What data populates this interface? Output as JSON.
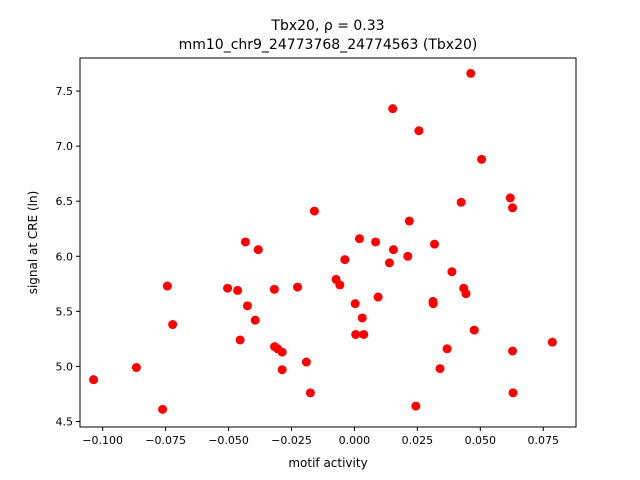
{
  "chart_data": {
    "type": "scatter",
    "title_line1": "Tbx20, ρ = 0.33",
    "title_line2": "mm10_chr9_24773768_24774563 (Tbx20)",
    "xlabel": "motif activity",
    "ylabel": "signal at CRE (ln)",
    "xlim": [
      -0.109,
      0.088
    ],
    "ylim": [
      4.45,
      7.8
    ],
    "xticks": [
      -0.1,
      -0.075,
      -0.05,
      -0.025,
      0.0,
      0.025,
      0.05,
      0.075
    ],
    "xtick_labels": [
      "−0.100",
      "−0.075",
      "−0.050",
      "−0.025",
      "0.000",
      "0.025",
      "0.050",
      "0.075"
    ],
    "yticks": [
      4.5,
      5.0,
      5.5,
      6.0,
      6.5,
      7.0,
      7.5
    ],
    "ytick_labels": [
      "4.5",
      "5.0",
      "5.5",
      "6.0",
      "6.5",
      "7.0",
      "7.5"
    ],
    "grid": false,
    "marker_color": "#ff0000",
    "points": [
      {
        "x": -0.1036,
        "y": 4.88
      },
      {
        "x": -0.0866,
        "y": 4.99
      },
      {
        "x": -0.0762,
        "y": 4.61
      },
      {
        "x": -0.0743,
        "y": 5.73
      },
      {
        "x": -0.0722,
        "y": 5.38
      },
      {
        "x": -0.0504,
        "y": 5.71
      },
      {
        "x": -0.0464,
        "y": 5.69
      },
      {
        "x": -0.0454,
        "y": 5.24
      },
      {
        "x": -0.0433,
        "y": 6.13
      },
      {
        "x": -0.0425,
        "y": 5.55
      },
      {
        "x": -0.0394,
        "y": 5.42
      },
      {
        "x": -0.0382,
        "y": 6.06
      },
      {
        "x": -0.0318,
        "y": 5.7
      },
      {
        "x": -0.0317,
        "y": 5.18
      },
      {
        "x": -0.0305,
        "y": 5.16
      },
      {
        "x": -0.0287,
        "y": 4.97
      },
      {
        "x": -0.0287,
        "y": 5.13
      },
      {
        "x": -0.0226,
        "y": 5.72
      },
      {
        "x": -0.0191,
        "y": 5.04
      },
      {
        "x": -0.0175,
        "y": 4.76
      },
      {
        "x": -0.0159,
        "y": 6.41
      },
      {
        "x": -0.0073,
        "y": 5.79
      },
      {
        "x": -0.0058,
        "y": 5.74
      },
      {
        "x": -0.0038,
        "y": 5.97
      },
      {
        "x": 0.0003,
        "y": 5.57
      },
      {
        "x": 0.0005,
        "y": 5.29
      },
      {
        "x": 0.002,
        "y": 6.16
      },
      {
        "x": 0.0031,
        "y": 5.44
      },
      {
        "x": 0.0037,
        "y": 5.29
      },
      {
        "x": 0.0084,
        "y": 6.13
      },
      {
        "x": 0.0094,
        "y": 5.63
      },
      {
        "x": 0.0139,
        "y": 5.94
      },
      {
        "x": 0.0152,
        "y": 7.34
      },
      {
        "x": 0.0155,
        "y": 6.06
      },
      {
        "x": 0.0212,
        "y": 6.0
      },
      {
        "x": 0.0218,
        "y": 6.32
      },
      {
        "x": 0.0244,
        "y": 4.64
      },
      {
        "x": 0.0256,
        "y": 7.14
      },
      {
        "x": 0.0312,
        "y": 5.59
      },
      {
        "x": 0.0313,
        "y": 5.57
      },
      {
        "x": 0.0318,
        "y": 6.11
      },
      {
        "x": 0.034,
        "y": 4.98
      },
      {
        "x": 0.0368,
        "y": 5.16
      },
      {
        "x": 0.0387,
        "y": 5.86
      },
      {
        "x": 0.0424,
        "y": 6.49
      },
      {
        "x": 0.0434,
        "y": 5.71
      },
      {
        "x": 0.0443,
        "y": 5.66
      },
      {
        "x": 0.0462,
        "y": 7.66
      },
      {
        "x": 0.0476,
        "y": 5.33
      },
      {
        "x": 0.0505,
        "y": 6.88
      },
      {
        "x": 0.0619,
        "y": 6.53
      },
      {
        "x": 0.0628,
        "y": 6.44
      },
      {
        "x": 0.0628,
        "y": 5.14
      },
      {
        "x": 0.063,
        "y": 4.76
      },
      {
        "x": 0.0786,
        "y": 5.22
      }
    ]
  }
}
